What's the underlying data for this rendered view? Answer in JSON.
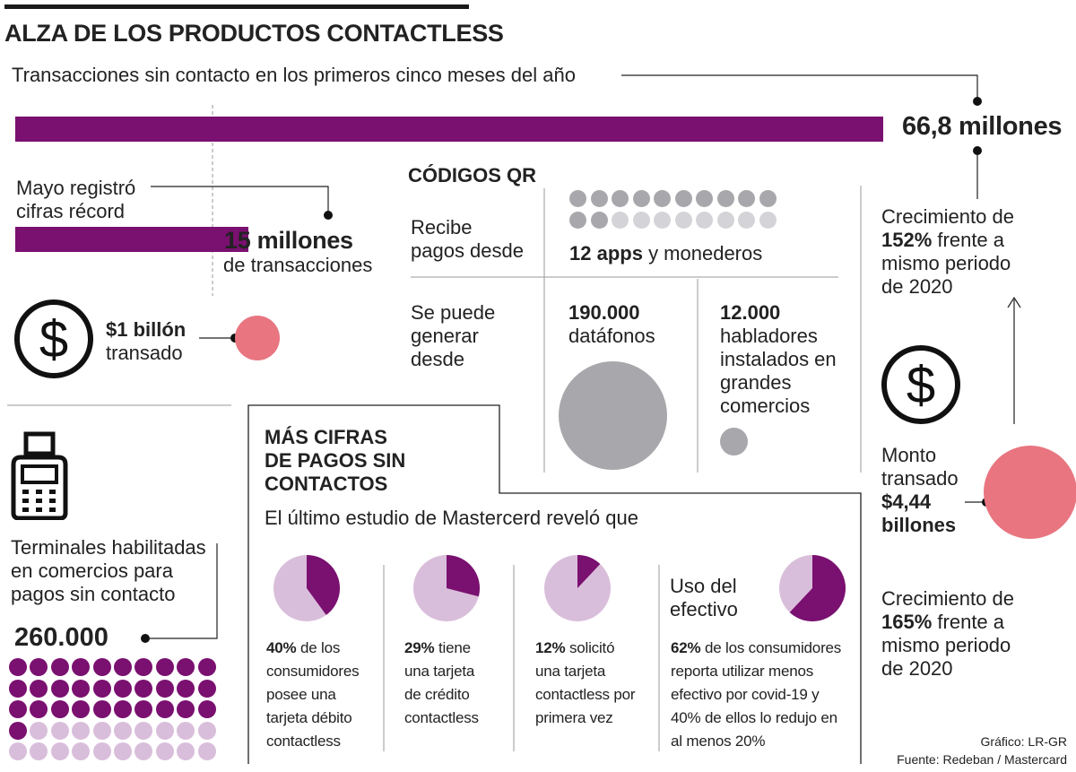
{
  "colors": {
    "purple": "#7a1070",
    "light_purple": "#d9bedb",
    "pink": "#e87580",
    "gray": "#a8a8ac",
    "light_gray": "#d4d4d8",
    "dark": "#1a1a1a"
  },
  "title": "ALZA DE LOS PRODUCTOS CONTACTLESS",
  "top": {
    "subtitle": "Transacciones sin contacto en los primeros cinco meses del año",
    "total_value": "66,8 millones",
    "total_fraction": 0.82
  },
  "may": {
    "label_line1": "Mayo registró",
    "label_line2": "cifras récord",
    "value": "15 millones",
    "unit": "de transacciones",
    "fraction": 0.22
  },
  "billion": {
    "value": "$1 billón",
    "label": "transado",
    "icon": "dollar-circle-icon"
  },
  "qr": {
    "title": "CÓDIGOS QR",
    "receive_line1": "Recibe",
    "receive_line2": "pagos desde",
    "apps_value": "12 apps",
    "apps_unit": "y monederos",
    "apps_filled": 12,
    "apps_total": 20,
    "generate_line1": "Se puede",
    "generate_line2": "generar",
    "generate_line3": "desde",
    "dataphones_value": "190.000",
    "dataphones_unit": "datáfonos",
    "speakers_value": "12.000",
    "speakers_line1": "habladores",
    "speakers_line2": "instalados en",
    "speakers_line3": "grandes",
    "speakers_line4": "comercios"
  },
  "terminals": {
    "icon": "pos-terminal-icon",
    "label_line1": "Terminales habilitadas",
    "label_line2": "en comercios para",
    "label_line3": "pagos sin contacto",
    "value": "260.000",
    "dots_filled": 31,
    "dots_total": 50
  },
  "mastercard": {
    "title_line1": "MÁS CIFRAS",
    "title_line2": "DE PAGOS SIN",
    "title_line3": "CONTACTOS",
    "intro": "El último estudio de Mastercerd reveló que",
    "stats": [
      {
        "pct": 40,
        "pct_label": "40%",
        "text_line1": "de los",
        "text_line2": "consumidores",
        "text_line3": "posee una",
        "text_line4": "tarjeta débito",
        "text_line5": "contactless"
      },
      {
        "pct": 29,
        "pct_label": "29%",
        "text_line1": "tiene",
        "text_line2": "una tarjeta",
        "text_line3": "de crédito",
        "text_line4": "contactless",
        "text_line5": ""
      },
      {
        "pct": 12,
        "pct_label": "12%",
        "text_line1": "solicitó",
        "text_line2": "una tarjeta",
        "text_line3": "contactless por",
        "text_line4": "primera vez",
        "text_line5": ""
      },
      {
        "pct": 62,
        "pct_label": "62%",
        "text_line1": "de los consumidores",
        "text_line2": "reporta utilizar menos",
        "text_line3": "efectivo por covid-19 y",
        "text_line4": "40% de ellos lo redujo en",
        "text_line5": "al menos 20%"
      }
    ],
    "cash_title_line1": "Uso del",
    "cash_title_line2": "efectivo"
  },
  "right": {
    "growth1_line1": "Crecimiento de",
    "growth1_pct": "152%",
    "growth1_line2": "frente a",
    "growth1_line3": "mismo periodo",
    "growth1_line4": "de 2020",
    "amount_line1": "Monto",
    "amount_line2": "transado",
    "amount_value_line1": "$4,44",
    "amount_value_line2": "billones",
    "growth2_line1": "Crecimiento de",
    "growth2_pct": "165%",
    "growth2_line2": "frente a",
    "growth2_line3": "mismo periodo",
    "growth2_line4": "de 2020",
    "icon": "dollar-circle-icon"
  },
  "credits": {
    "graphic": "Gráfico: LR-GR",
    "source": "Fuente: Redeban / Mastercard"
  }
}
